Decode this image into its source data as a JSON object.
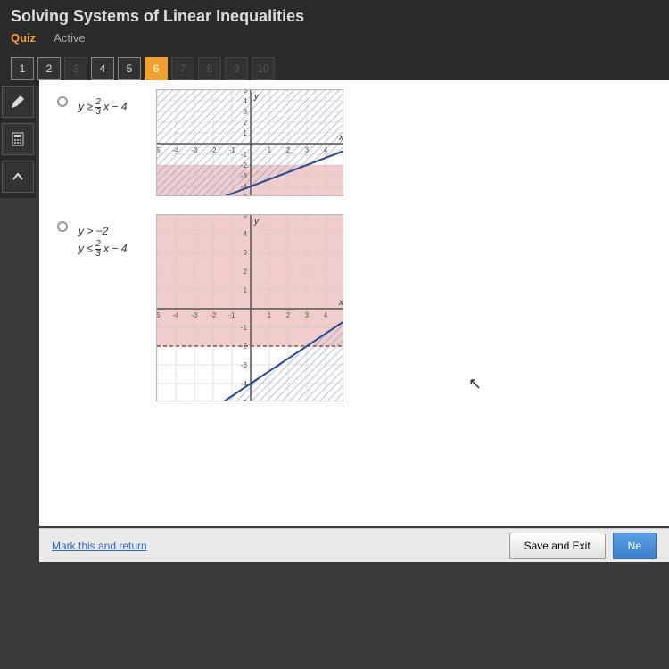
{
  "header": {
    "title": "Solving Systems of Linear Inequalities",
    "tab_quiz": "Quiz",
    "tab_active": "Active"
  },
  "questions": {
    "nums": [
      1,
      2,
      3,
      4,
      5,
      6,
      7,
      8,
      9,
      10
    ],
    "current": 6,
    "dimmed": [
      3,
      7,
      8,
      9,
      10
    ]
  },
  "options": [
    {
      "inequalities_html": "y ≥ <span class='frac'><span class='num'>2</span><span class='den'>3</span></span> x − 4",
      "graph": {
        "type": "coordinate-plane",
        "xlim": [
          -5,
          5
        ],
        "ylim": [
          -5,
          5
        ],
        "region1": {
          "color": "#e8b0b0a0",
          "y_below": -2
        },
        "region2": {
          "color": "#a0b8d880",
          "above_line": true
        },
        "line": {
          "slope": 0.667,
          "intercept": -4,
          "color": "#2a4a8a",
          "width": 2,
          "dashed": false
        },
        "grid_color": "#c8c8c8",
        "axis_color": "#555"
      }
    },
    {
      "inequalities_html": "y > −2<br>y ≤ <span class='frac'><span class='num'>2</span><span class='den'>3</span></span> x − 4",
      "graph": {
        "type": "coordinate-plane",
        "xlim": [
          -5,
          5
        ],
        "ylim": [
          -5,
          5
        ],
        "region1": {
          "color": "#e8b0b0a0",
          "y_above": -2
        },
        "region2": {
          "color": "#a0b8d880",
          "below_line": true
        },
        "line": {
          "slope": 0.667,
          "intercept": -4,
          "color": "#2a4a8a",
          "width": 2,
          "dashed": false
        },
        "hline": {
          "y": -2,
          "dashed": true,
          "color": "#a04a4a"
        },
        "grid_color": "#c8c8c8",
        "axis_color": "#555"
      }
    }
  ],
  "footer": {
    "mark": "Mark this and return",
    "save": "Save and Exit",
    "next": "Ne"
  }
}
